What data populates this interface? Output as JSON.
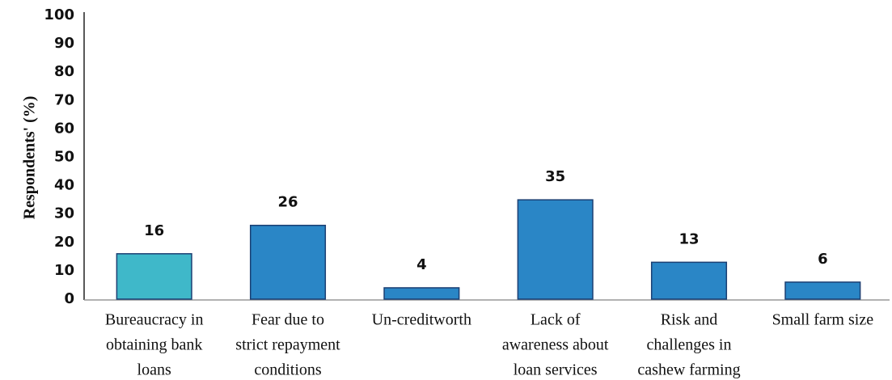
{
  "chart_data": {
    "type": "bar",
    "y_label": "Respondents' (%)",
    "categories": [
      [
        "Bureaucracy in",
        "obtaining bank",
        "loans"
      ],
      [
        "Fear due to",
        "strict repayment",
        "conditions"
      ],
      [
        "Un-creditworth"
      ],
      [
        "Lack of",
        "awareness about",
        "loan services"
      ],
      [
        "Risk and",
        "challenges in",
        "cashew farming"
      ],
      [
        "Small farm size"
      ]
    ],
    "values": [
      16,
      26,
      4,
      35,
      13,
      6
    ],
    "colors": [
      "#3fb8c9",
      "#2a86c6",
      "#2a86c6",
      "#2a86c6",
      "#2a86c6",
      "#2a86c6"
    ],
    "ylim": [
      0,
      100
    ],
    "yticks": [
      0,
      10,
      20,
      30,
      40,
      50,
      60,
      70,
      80,
      90,
      100
    ],
    "grid": false
  }
}
